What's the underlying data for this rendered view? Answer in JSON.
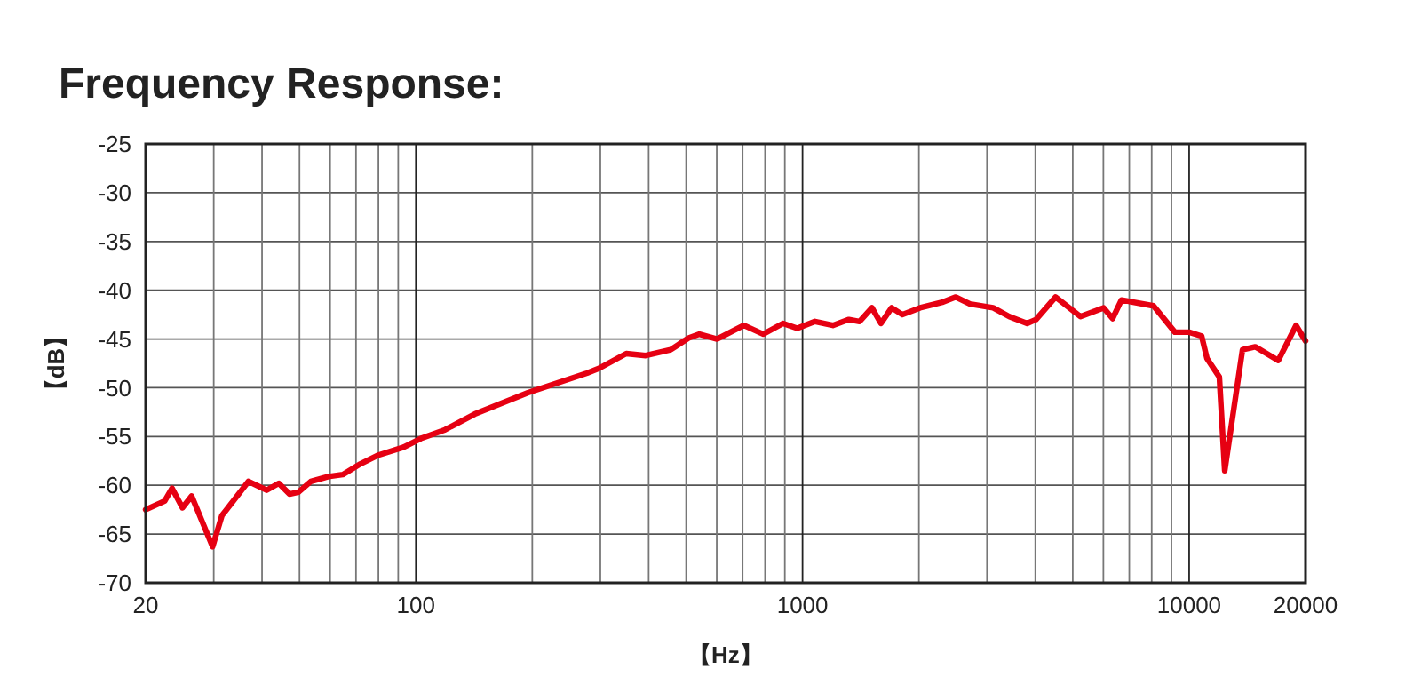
{
  "chart_data": {
    "type": "line",
    "title": "Frequency Response:",
    "xlabel": "【Hz】",
    "ylabel": "【dB】",
    "log": "x",
    "grid": true,
    "marker": "none",
    "line_style": "solid",
    "xlim": [
      20,
      20000
    ],
    "ylim": [
      -70,
      -25
    ],
    "xticks": [
      20,
      {
        "value": 30,
        "label": null
      },
      {
        "value": 40,
        "label": null
      },
      {
        "value": 50,
        "label": null
      },
      {
        "value": 60,
        "label": null
      },
      {
        "value": 70,
        "label": null
      },
      {
        "value": 80,
        "label": null
      },
      {
        "value": 90,
        "label": null
      },
      100,
      {
        "value": 200,
        "label": null
      },
      {
        "value": 300,
        "label": null
      },
      {
        "value": 400,
        "label": null
      },
      {
        "value": 500,
        "label": null
      },
      {
        "value": 600,
        "label": null
      },
      {
        "value": 700,
        "label": null
      },
      {
        "value": 800,
        "label": null
      },
      {
        "value": 900,
        "label": null
      },
      1000,
      {
        "value": 2000,
        "label": null
      },
      {
        "value": 3000,
        "label": null
      },
      {
        "value": 4000,
        "label": null
      },
      {
        "value": 5000,
        "label": null
      },
      {
        "value": 6000,
        "label": null
      },
      {
        "value": 7000,
        "label": null
      },
      {
        "value": 8000,
        "label": null
      },
      {
        "value": 9000,
        "label": null
      },
      10000,
      20000
    ],
    "yticks": [
      -70,
      -65,
      -60,
      -55,
      -50,
      -45,
      -40,
      -35,
      -30,
      -25
    ],
    "x": [
      20,
      22.4,
      23.4,
      24.9,
      26.3,
      29.8,
      31.5,
      36.9,
      41.1,
      44.2,
      47.1,
      49.7,
      53.5,
      59.4,
      64.7,
      71.9,
      80,
      92.9,
      103,
      119,
      142,
      195,
      277,
      298,
      350,
      393,
      456,
      507,
      541,
      601,
      705,
      792,
      890,
      969,
      1077,
      1198,
      1318,
      1404,
      1512,
      1595,
      1700,
      1812,
      2014,
      2312,
      2491,
      2711,
      3112,
      3425,
      3810,
      4017,
      4511,
      5234,
      6009,
      6338,
      6681,
      8088,
      9187,
      10000,
      10770,
      11120,
      11970,
      12360,
      13740,
      14820,
      17000,
      18900,
      20000
    ],
    "series": [
      {
        "color": "#e60012",
        "values": [
          -62.5,
          -61.6,
          -60.3,
          -62.3,
          -61.1,
          -66.3,
          -63.1,
          -59.6,
          -60.5,
          -59.8,
          -60.9,
          -60.7,
          -59.6,
          -59.1,
          -58.9,
          -57.8,
          -56.9,
          -56.1,
          -55.2,
          -54.3,
          -52.7,
          -50.5,
          -48.5,
          -48,
          -46.5,
          -46.7,
          -46.1,
          -44.9,
          -44.5,
          -45,
          -43.6,
          -44.5,
          -43.4,
          -43.9,
          -43.2,
          -43.6,
          -43,
          -43.2,
          -41.8,
          -43.4,
          -41.8,
          -42.5,
          -41.8,
          -41.2,
          -40.7,
          -41.4,
          -41.8,
          -42.7,
          -43.4,
          -43,
          -40.7,
          -42.7,
          -41.8,
          -42.9,
          -41,
          -41.6,
          -44.3,
          -44.3,
          -44.7,
          -47,
          -48.9,
          -58.5,
          -46.1,
          -45.8,
          -47.2,
          -43.6,
          -45.2
        ]
      }
    ]
  }
}
